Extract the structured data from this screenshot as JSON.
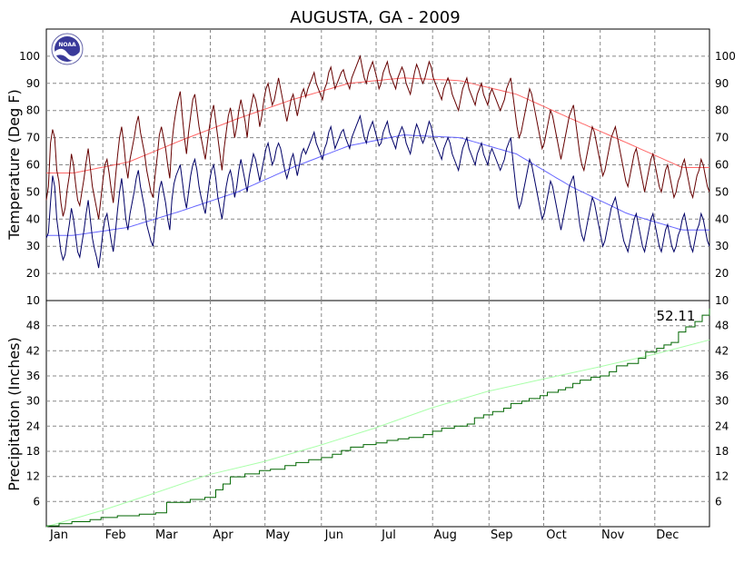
{
  "chart_data": [
    {
      "type": "line",
      "title": "AUGUSTA, GA - 2009",
      "ylabel": "Temperature (Deg F)",
      "ylim": [
        10,
        110
      ],
      "yticks": [
        10,
        20,
        30,
        40,
        50,
        60,
        70,
        80,
        90,
        100
      ],
      "grid": true,
      "months": [
        "Jan",
        "Feb",
        "Mar",
        "Apr",
        "May",
        "Jun",
        "Jul",
        "Aug",
        "Sep",
        "Oct",
        "Nov",
        "Dec"
      ],
      "x_unit": "day of year",
      "series": [
        {
          "role": "daily high",
          "color": "#660000",
          "values": [
            47,
            52,
            68,
            73,
            70,
            58,
            54,
            46,
            41,
            44,
            51,
            56,
            64,
            60,
            53,
            47,
            45,
            50,
            55,
            61,
            66,
            59,
            52,
            48,
            44,
            40,
            47,
            54,
            60,
            62,
            57,
            51,
            46,
            55,
            63,
            70,
            74,
            68,
            60,
            55,
            62,
            66,
            70,
            75,
            78,
            72,
            68,
            64,
            58,
            54,
            50,
            48,
            56,
            63,
            71,
            74,
            70,
            66,
            60,
            55,
            68,
            75,
            80,
            84,
            87,
            78,
            70,
            64,
            72,
            78,
            84,
            86,
            80,
            74,
            70,
            66,
            62,
            68,
            74,
            79,
            82,
            76,
            70,
            64,
            58,
            66,
            72,
            78,
            81,
            76,
            70,
            74,
            80,
            84,
            80,
            76,
            70,
            78,
            82,
            86,
            84,
            80,
            74,
            78,
            84,
            88,
            90,
            86,
            82,
            84,
            88,
            92,
            88,
            84,
            80,
            76,
            80,
            84,
            86,
            82,
            78,
            82,
            86,
            88,
            85,
            88,
            90,
            92,
            94,
            90,
            88,
            86,
            84,
            88,
            90,
            94,
            96,
            92,
            88,
            90,
            92,
            94,
            95,
            92,
            90,
            88,
            92,
            94,
            96,
            98,
            100,
            96,
            92,
            90,
            94,
            96,
            98,
            95,
            92,
            88,
            90,
            94,
            96,
            98,
            94,
            92,
            90,
            88,
            92,
            94,
            96,
            94,
            90,
            88,
            86,
            90,
            94,
            97,
            95,
            92,
            90,
            92,
            95,
            98,
            96,
            92,
            90,
            88,
            86,
            84,
            88,
            90,
            92,
            90,
            86,
            84,
            82,
            80,
            84,
            88,
            90,
            92,
            88,
            86,
            84,
            82,
            86,
            88,
            90,
            86,
            84,
            82,
            86,
            88,
            86,
            84,
            82,
            80,
            82,
            84,
            88,
            90,
            92,
            86,
            80,
            74,
            70,
            72,
            76,
            80,
            84,
            88,
            86,
            82,
            78,
            74,
            70,
            66,
            68,
            72,
            76,
            80,
            78,
            74,
            70,
            66,
            62,
            66,
            70,
            74,
            78,
            80,
            82,
            76,
            70,
            64,
            60,
            58,
            62,
            66,
            70,
            74,
            72,
            68,
            64,
            60,
            56,
            58,
            62,
            66,
            70,
            72,
            74,
            70,
            66,
            62,
            58,
            54,
            52,
            56,
            60,
            64,
            66,
            62,
            58,
            54,
            50,
            54,
            58,
            62,
            64,
            60,
            56,
            52,
            50,
            54,
            58,
            60,
            56,
            52,
            48,
            50,
            54,
            56,
            60,
            62,
            58,
            54,
            50,
            48,
            52,
            56,
            58,
            62,
            60,
            56,
            52,
            50
          ]
        },
        {
          "role": "daily low",
          "color": "#000066",
          "values": [
            33,
            35,
            46,
            56,
            52,
            40,
            34,
            28,
            25,
            27,
            33,
            38,
            44,
            40,
            34,
            28,
            26,
            31,
            36,
            42,
            47,
            40,
            33,
            29,
            26,
            22,
            28,
            35,
            40,
            42,
            37,
            32,
            28,
            35,
            43,
            50,
            55,
            48,
            40,
            36,
            42,
            46,
            50,
            55,
            58,
            52,
            48,
            44,
            38,
            35,
            32,
            30,
            37,
            44,
            51,
            54,
            50,
            46,
            40,
            36,
            47,
            53,
            56,
            58,
            60,
            54,
            48,
            44,
            50,
            56,
            60,
            62,
            58,
            52,
            48,
            45,
            42,
            48,
            54,
            58,
            60,
            55,
            48,
            44,
            40,
            46,
            52,
            56,
            58,
            54,
            48,
            52,
            58,
            62,
            58,
            54,
            50,
            56,
            60,
            64,
            62,
            58,
            54,
            58,
            62,
            66,
            68,
            64,
            60,
            62,
            66,
            68,
            66,
            62,
            58,
            55,
            58,
            62,
            64,
            60,
            56,
            60,
            64,
            66,
            64,
            66,
            68,
            70,
            72,
            68,
            66,
            64,
            62,
            66,
            68,
            72,
            74,
            70,
            66,
            68,
            70,
            72,
            73,
            70,
            68,
            66,
            70,
            72,
            74,
            76,
            78,
            74,
            70,
            68,
            72,
            74,
            76,
            73,
            70,
            67,
            68,
            72,
            74,
            76,
            72,
            70,
            68,
            66,
            70,
            72,
            74,
            72,
            68,
            66,
            64,
            68,
            72,
            75,
            73,
            70,
            68,
            70,
            73,
            76,
            74,
            70,
            68,
            66,
            64,
            62,
            66,
            68,
            70,
            68,
            64,
            62,
            60,
            58,
            62,
            66,
            68,
            70,
            66,
            64,
            62,
            60,
            64,
            66,
            68,
            64,
            62,
            60,
            64,
            66,
            64,
            62,
            60,
            58,
            60,
            62,
            66,
            68,
            70,
            62,
            55,
            48,
            44,
            46,
            50,
            54,
            58,
            62,
            60,
            56,
            52,
            48,
            44,
            40,
            42,
            46,
            50,
            54,
            52,
            48,
            44,
            40,
            36,
            40,
            44,
            48,
            52,
            54,
            56,
            50,
            44,
            38,
            34,
            32,
            36,
            40,
            44,
            48,
            46,
            42,
            38,
            34,
            30,
            32,
            36,
            40,
            44,
            46,
            48,
            44,
            40,
            36,
            32,
            30,
            28,
            32,
            36,
            40,
            42,
            38,
            34,
            30,
            28,
            32,
            36,
            40,
            42,
            38,
            34,
            30,
            28,
            32,
            36,
            38,
            34,
            30,
            28,
            30,
            34,
            36,
            40,
            42,
            38,
            34,
            30,
            28,
            32,
            36,
            38,
            42,
            40,
            36,
            32,
            30
          ]
        },
        {
          "role": "normal high",
          "color": "#ff6666",
          "month_values": [
            57,
            61,
            69,
            77,
            84,
            90,
            92,
            91,
            86,
            77,
            68,
            59
          ]
        },
        {
          "role": "normal low",
          "color": "#6666ff",
          "month_values": [
            34,
            37,
            43,
            50,
            59,
            67,
            71,
            70,
            64,
            52,
            42,
            36
          ]
        }
      ]
    },
    {
      "type": "line",
      "ylabel": "Precipitation (Inches)",
      "ylim": [
        0,
        54
      ],
      "yticks": [
        6,
        12,
        18,
        24,
        30,
        36,
        42,
        48
      ],
      "grid": true,
      "total_label": "52.11",
      "series": [
        {
          "role": "cumulative 2009",
          "color": "#006600",
          "points": [
            [
              1,
              0.2
            ],
            [
              8,
              0.7
            ],
            [
              15,
              1.2
            ],
            [
              25,
              1.7
            ],
            [
              31,
              2.2
            ],
            [
              40,
              2.6
            ],
            [
              52,
              3.0
            ],
            [
              61,
              3.3
            ],
            [
              67,
              5.8
            ],
            [
              80,
              6.5
            ],
            [
              88,
              7.0
            ],
            [
              94,
              8.8
            ],
            [
              98,
              10.2
            ],
            [
              102,
              11.9
            ],
            [
              110,
              12.6
            ],
            [
              118,
              13.4
            ],
            [
              124,
              13.7
            ],
            [
              132,
              14.6
            ],
            [
              138,
              15.3
            ],
            [
              145,
              16.0
            ],
            [
              152,
              16.5
            ],
            [
              158,
              17.3
            ],
            [
              163,
              18.2
            ],
            [
              168,
              19.0
            ],
            [
              175,
              19.6
            ],
            [
              182,
              20.0
            ],
            [
              188,
              20.6
            ],
            [
              194,
              21.0
            ],
            [
              200,
              21.3
            ],
            [
              208,
              22.0
            ],
            [
              213,
              22.8
            ],
            [
              218,
              23.5
            ],
            [
              225,
              24.0
            ],
            [
              232,
              24.5
            ],
            [
              236,
              26.0
            ],
            [
              241,
              26.7
            ],
            [
              246,
              27.5
            ],
            [
              252,
              28.3
            ],
            [
              256,
              29.4
            ],
            [
              262,
              30.0
            ],
            [
              266,
              30.6
            ],
            [
              272,
              31.3
            ],
            [
              276,
              32.1
            ],
            [
              282,
              32.7
            ],
            [
              286,
              33.2
            ],
            [
              290,
              34.2
            ],
            [
              294,
              35.0
            ],
            [
              300,
              35.7
            ],
            [
              305,
              36.0
            ],
            [
              310,
              37.0
            ],
            [
              314,
              38.4
            ],
            [
              320,
              39.0
            ],
            [
              326,
              40.2
            ],
            [
              330,
              41.7
            ],
            [
              336,
              42.6
            ],
            [
              340,
              43.4
            ],
            [
              344,
              44.0
            ],
            [
              348,
              46.5
            ],
            [
              352,
              47.7
            ],
            [
              357,
              49.0
            ],
            [
              361,
              50.5
            ],
            [
              365,
              52.11
            ]
          ]
        },
        {
          "role": "normal cumulative",
          "color": "#aaffaa",
          "points": [
            [
              1,
              0
            ],
            [
              31,
              3.8
            ],
            [
              59,
              7.8
            ],
            [
              90,
              12.4
            ],
            [
              120,
              15.5
            ],
            [
              151,
              19.4
            ],
            [
              181,
              23.5
            ],
            [
              212,
              28.3
            ],
            [
              243,
              32.3
            ],
            [
              273,
              35.2
            ],
            [
              304,
              38.1
            ],
            [
              334,
              41.1
            ],
            [
              365,
              44.6
            ]
          ]
        }
      ]
    }
  ],
  "assets": {
    "logo_text": "NOAA"
  }
}
